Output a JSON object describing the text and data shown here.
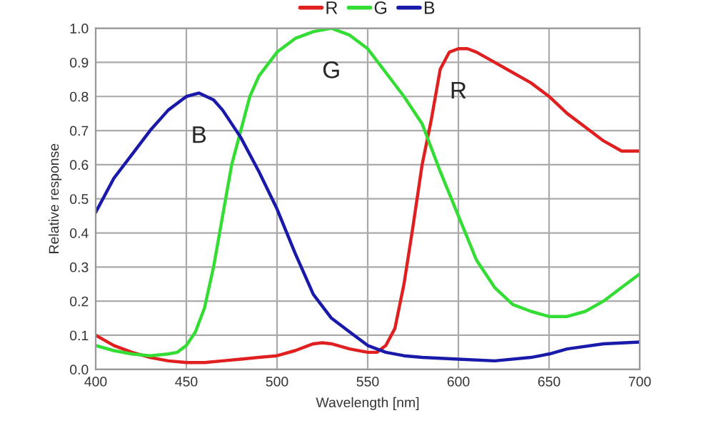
{
  "chart_data": {
    "type": "line",
    "xlabel": "Wavelength [nm]",
    "ylabel": "Relative response",
    "xlim": [
      400,
      700
    ],
    "xticks": [
      400,
      450,
      500,
      550,
      600,
      650,
      700
    ],
    "ylim": [
      0,
      1.0
    ],
    "yticks": [
      {
        "value": 0,
        "label": "0.0"
      },
      0.1,
      0.2,
      0.3,
      0.4,
      0.5,
      0.6,
      0.7,
      0.8,
      0.9,
      {
        "value": 1.0,
        "label": "1.0"
      }
    ],
    "grid": true,
    "legend": "top",
    "marker": "none",
    "line_style": "solid",
    "series": [
      {
        "name": "R",
        "color": "#e02020",
        "x": [
          400,
          410,
          420,
          430,
          440,
          450,
          460,
          470,
          480,
          490,
          500,
          510,
          520,
          525,
          530,
          540,
          550,
          555,
          560,
          565,
          570,
          575,
          580,
          585,
          590,
          595,
          600,
          605,
          610,
          620,
          630,
          640,
          650,
          660,
          670,
          680,
          690,
          700
        ],
        "values": [
          0.1,
          0.07,
          0.05,
          0.035,
          0.025,
          0.02,
          0.02,
          0.025,
          0.03,
          0.035,
          0.04,
          0.055,
          0.075,
          0.078,
          0.075,
          0.06,
          0.05,
          0.05,
          0.07,
          0.12,
          0.25,
          0.42,
          0.6,
          0.73,
          0.88,
          0.93,
          0.94,
          0.94,
          0.93,
          0.9,
          0.87,
          0.84,
          0.8,
          0.75,
          0.71,
          0.67,
          0.64,
          0.64
        ]
      },
      {
        "name": "G",
        "color": "#33dd33",
        "x": [
          400,
          410,
          420,
          430,
          440,
          445,
          450,
          455,
          460,
          465,
          470,
          475,
          480,
          485,
          490,
          500,
          510,
          520,
          530,
          540,
          550,
          560,
          570,
          580,
          590,
          600,
          610,
          620,
          630,
          640,
          650,
          660,
          670,
          680,
          690,
          700
        ],
        "values": [
          0.07,
          0.055,
          0.045,
          0.04,
          0.045,
          0.05,
          0.07,
          0.11,
          0.18,
          0.3,
          0.45,
          0.6,
          0.7,
          0.8,
          0.86,
          0.93,
          0.97,
          0.99,
          1.0,
          0.98,
          0.94,
          0.87,
          0.8,
          0.72,
          0.58,
          0.45,
          0.32,
          0.24,
          0.19,
          0.17,
          0.155,
          0.155,
          0.17,
          0.2,
          0.24,
          0.28
        ]
      },
      {
        "name": "B",
        "color": "#1a1aaa",
        "x": [
          400,
          410,
          420,
          430,
          440,
          450,
          457,
          465,
          470,
          480,
          490,
          500,
          510,
          520,
          530,
          540,
          550,
          560,
          570,
          580,
          600,
          620,
          640,
          650,
          660,
          680,
          700
        ],
        "values": [
          0.46,
          0.56,
          0.63,
          0.7,
          0.76,
          0.8,
          0.81,
          0.79,
          0.76,
          0.68,
          0.58,
          0.47,
          0.34,
          0.22,
          0.15,
          0.11,
          0.07,
          0.05,
          0.04,
          0.035,
          0.03,
          0.025,
          0.035,
          0.045,
          0.06,
          0.075,
          0.08
        ]
      }
    ]
  }
}
